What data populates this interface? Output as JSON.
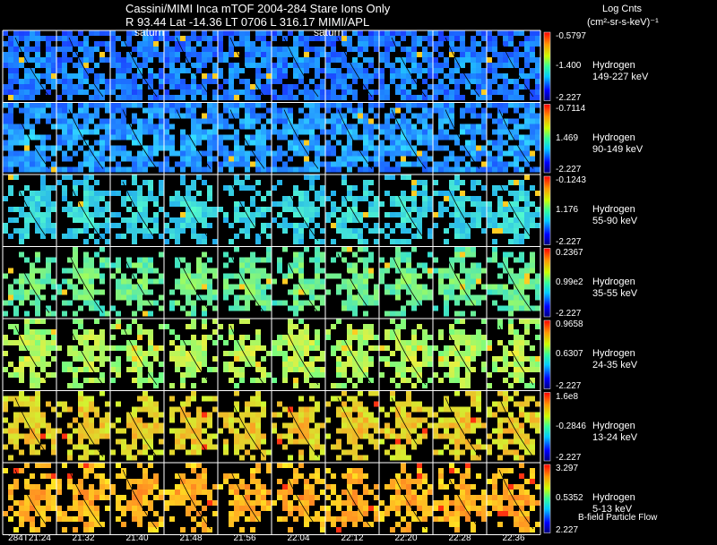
{
  "header": {
    "title": "Cassini/MIMI Inca mTOF  2004-284    Stare    Ions Only",
    "subtitle": "R         93.44 Lat -14.36 LT 0706 L          316.17   MIMI/APL",
    "saturn_label": "saturn",
    "legend_title": "Log Cnts",
    "legend_units": "(cm²-sr-s-keV)⁻¹",
    "bfield_label": "B-field Particle Flow"
  },
  "chart_data": {
    "type": "heatmap",
    "title": "Cassini/MIMI Inca mTOF  2004-284    Stare    Ions Only",
    "x_labels": [
      "284T21:24",
      "21:32",
      "21:40",
      "21:48",
      "21:56",
      "22:04",
      "22:12",
      "22:20",
      "22:28",
      "22:36"
    ],
    "rows": [
      {
        "species": "Hydrogen",
        "energy": "149-227 keV",
        "cbar_max": "-0.5797",
        "cbar_mid": "-1.400",
        "cbar_min": "-2.227",
        "base": "#1a3cff",
        "hi": "#22c8ff"
      },
      {
        "species": "Hydrogen",
        "energy": "90-149 keV",
        "cbar_max": "-0.7114",
        "cbar_mid": "1.469",
        "cbar_min": "-2.227",
        "base": "#1a5aff",
        "hi": "#33e8ff"
      },
      {
        "species": "Hydrogen",
        "energy": "55-90 keV",
        "cbar_max": "-0.1243",
        "cbar_mid": "1.176",
        "cbar_min": "-2.227",
        "base": "#1fa8f0",
        "hi": "#55ffcc"
      },
      {
        "species": "Hydrogen",
        "energy": "35-55 keV",
        "cbar_max": "0.2367",
        "cbar_mid": "0.99e2",
        "cbar_min": "-2.227",
        "base": "#33e0d0",
        "hi": "#aaff55"
      },
      {
        "species": "Hydrogen",
        "energy": "24-35 keV",
        "cbar_max": "0.9658",
        "cbar_mid": "0.6307",
        "cbar_min": "-2.227",
        "base": "#66ff88",
        "hi": "#ffee33"
      },
      {
        "species": "Hydrogen",
        "energy": "13-24 keV",
        "cbar_max": "1.6e8",
        "cbar_mid": "-0.2846",
        "cbar_min": "-2.227",
        "base": "#ccff33",
        "hi": "#ff9922"
      },
      {
        "species": "Hydrogen",
        "energy": "5-13 keV",
        "cbar_max": "3.297",
        "cbar_mid": "0.5352",
        "cbar_min": "2.227",
        "base": "#ffee22",
        "hi": "#ff7722"
      }
    ]
  }
}
